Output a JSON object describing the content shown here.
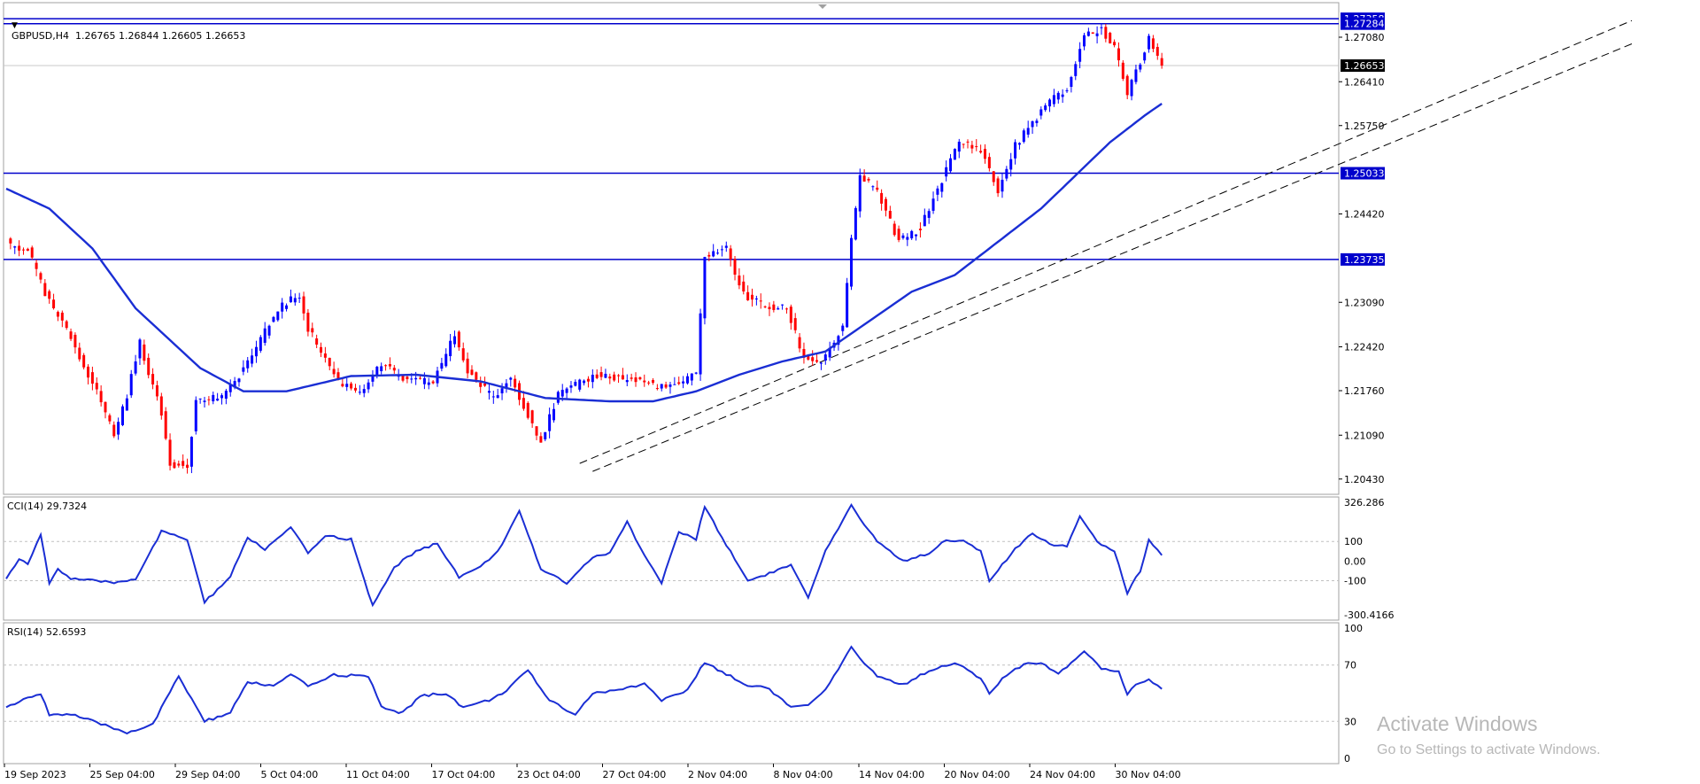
{
  "symbol_header": {
    "menu_icon": "triangle-down-icon",
    "text": "GBPUSD,H4  1.26765 1.26844 1.26605 1.26653"
  },
  "cci_header": {
    "text": "CCI(14) 29.7324"
  },
  "rsi_header": {
    "text": "RSI(14) 52.6593"
  },
  "watermark": {
    "line1": "Activate Windows",
    "line2": "Go to Settings to activate Windows."
  },
  "colors": {
    "bull_candle": "#0000ff",
    "bear_candle": "#ff0000",
    "moving_average": "#1a2ed4",
    "level_line": "#0000cc",
    "indicator_line": "#1a2ed4",
    "trend_line": "#000000",
    "label_bg": "#0000cc",
    "current_price_bg": "#000000"
  },
  "chart_data": [
    {
      "type": "candlestick",
      "panel": "main",
      "symbol": "GBPUSD",
      "timeframe": "H4",
      "ohlc_last": {
        "open": 1.26765,
        "high": 1.26844,
        "low": 1.26605,
        "close": 1.26653
      },
      "y_ticks": [
        1.2708,
        1.2641,
        1.2575,
        1.2442,
        1.2309,
        1.2242,
        1.2176,
        1.2109,
        1.2043
      ],
      "ylim": [
        1.202,
        1.276
      ],
      "x_tick_labels": [
        "19 Sep 2023",
        "25 Sep 04:00",
        "29 Sep 04:00",
        "5 Oct 04:00",
        "11 Oct 04:00",
        "17 Oct 04:00",
        "23 Oct 04:00",
        "27 Oct 04:00",
        "2 Nov 04:00",
        "8 Nov 04:00",
        "14 Nov 04:00",
        "20 Nov 04:00",
        "24 Nov 04:00",
        "30 Nov 04:00"
      ],
      "price_path_keypoints": [
        {
          "t": 0,
          "price": 1.24
        },
        {
          "t": 3,
          "price": 1.239
        },
        {
          "t": 5,
          "price": 1.239
        },
        {
          "t": 9,
          "price": 1.232
        },
        {
          "t": 15,
          "price": 1.2255
        },
        {
          "t": 22,
          "price": 1.216
        },
        {
          "t": 25,
          "price": 1.211
        },
        {
          "t": 28,
          "price": 1.217
        },
        {
          "t": 31,
          "price": 1.2248
        },
        {
          "t": 36,
          "price": 1.214
        },
        {
          "t": 38,
          "price": 1.2065
        },
        {
          "t": 42,
          "price": 1.2065
        },
        {
          "t": 44,
          "price": 1.216
        },
        {
          "t": 51,
          "price": 1.217
        },
        {
          "t": 58,
          "price": 1.224
        },
        {
          "t": 63,
          "price": 1.23
        },
        {
          "t": 68,
          "price": 1.232
        },
        {
          "t": 70,
          "price": 1.227
        },
        {
          "t": 77,
          "price": 1.219
        },
        {
          "t": 82,
          "price": 1.2175
        },
        {
          "t": 87,
          "price": 1.2215
        },
        {
          "t": 93,
          "price": 1.219
        },
        {
          "t": 99,
          "price": 1.219
        },
        {
          "t": 104,
          "price": 1.226
        },
        {
          "t": 107,
          "price": 1.2205
        },
        {
          "t": 113,
          "price": 1.2165
        },
        {
          "t": 117,
          "price": 1.2195
        },
        {
          "t": 124,
          "price": 1.21
        },
        {
          "t": 128,
          "price": 1.217
        },
        {
          "t": 137,
          "price": 1.22
        },
        {
          "t": 142,
          "price": 1.2195
        },
        {
          "t": 147,
          "price": 1.219
        },
        {
          "t": 154,
          "price": 1.218
        },
        {
          "t": 160,
          "price": 1.22
        },
        {
          "t": 162,
          "price": 1.238
        },
        {
          "t": 167,
          "price": 1.239
        },
        {
          "t": 171,
          "price": 1.232
        },
        {
          "t": 177,
          "price": 1.23
        },
        {
          "t": 181,
          "price": 1.23
        },
        {
          "t": 185,
          "price": 1.2225
        },
        {
          "t": 189,
          "price": 1.222
        },
        {
          "t": 194,
          "price": 1.227
        },
        {
          "t": 196,
          "price": 1.24
        },
        {
          "t": 198,
          "price": 1.25
        },
        {
          "t": 202,
          "price": 1.2475
        },
        {
          "t": 207,
          "price": 1.24
        },
        {
          "t": 212,
          "price": 1.242
        },
        {
          "t": 216,
          "price": 1.248
        },
        {
          "t": 221,
          "price": 1.255
        },
        {
          "t": 226,
          "price": 1.254
        },
        {
          "t": 230,
          "price": 1.2475
        },
        {
          "t": 234,
          "price": 1.2545
        },
        {
          "t": 238,
          "price": 1.258
        },
        {
          "t": 242,
          "price": 1.2612
        },
        {
          "t": 246,
          "price": 1.2628
        },
        {
          "t": 250,
          "price": 1.2712
        },
        {
          "t": 254,
          "price": 1.2718
        },
        {
          "t": 257,
          "price": 1.2695
        },
        {
          "t": 260,
          "price": 1.2625
        },
        {
          "t": 263,
          "price": 1.2668
        },
        {
          "t": 265,
          "price": 1.2712
        },
        {
          "t": 268,
          "price": 1.2665
        }
      ],
      "moving_average_keypoints": [
        {
          "t": 0,
          "price": 1.248
        },
        {
          "t": 10,
          "price": 1.245
        },
        {
          "t": 20,
          "price": 1.239
        },
        {
          "t": 30,
          "price": 1.23
        },
        {
          "t": 45,
          "price": 1.221
        },
        {
          "t": 55,
          "price": 1.2175
        },
        {
          "t": 65,
          "price": 1.2175
        },
        {
          "t": 80,
          "price": 1.2198
        },
        {
          "t": 95,
          "price": 1.22
        },
        {
          "t": 110,
          "price": 1.219
        },
        {
          "t": 125,
          "price": 1.2165
        },
        {
          "t": 140,
          "price": 1.216
        },
        {
          "t": 150,
          "price": 1.216
        },
        {
          "t": 160,
          "price": 1.2175
        },
        {
          "t": 170,
          "price": 1.22
        },
        {
          "t": 180,
          "price": 1.222
        },
        {
          "t": 190,
          "price": 1.2235
        },
        {
          "t": 200,
          "price": 1.228
        },
        {
          "t": 210,
          "price": 1.2325
        },
        {
          "t": 220,
          "price": 1.235
        },
        {
          "t": 230,
          "price": 1.24
        },
        {
          "t": 240,
          "price": 1.245
        },
        {
          "t": 248,
          "price": 1.25
        },
        {
          "t": 256,
          "price": 1.255
        },
        {
          "t": 264,
          "price": 1.259
        },
        {
          "t": 268,
          "price": 1.2608
        }
      ],
      "horizontal_levels": [
        {
          "price": 1.27358,
          "label": "1.27358",
          "style": "solid"
        },
        {
          "price": 1.27284,
          "label": "1.27284",
          "style": "solid"
        },
        {
          "price": 1.25033,
          "label": "1.25033",
          "style": "solid"
        },
        {
          "price": 1.23735,
          "label": "1.23735",
          "style": "solid"
        },
        {
          "price": 1.26653,
          "label": "1.26653",
          "style": "thin-current"
        }
      ],
      "trend_lines": [
        {
          "from": {
            "t": 133,
            "price": 1.20665
          },
          "to": {
            "t": 377,
            "price": 1.2733
          },
          "style": "dashed"
        },
        {
          "from": {
            "t": 136,
            "price": 1.20545
          },
          "to": {
            "t": 377,
            "price": 1.2698
          },
          "style": "dashed"
        }
      ]
    },
    {
      "type": "line",
      "panel": "cci",
      "name": "CCI(14)",
      "last_value": 29.7324,
      "ylim": [
        -300.4166,
        326.286
      ],
      "y_ticks": [
        326.286,
        100,
        0.0,
        -100,
        -300.4166
      ],
      "y_tick_labels": [
        "326.286",
        "100",
        "0.00",
        "-100",
        "-300.4166"
      ],
      "levels": [
        100,
        -100
      ],
      "keypoints": [
        {
          "t": 0,
          "v": -90
        },
        {
          "t": 3,
          "v": 10
        },
        {
          "t": 5,
          "v": -20
        },
        {
          "t": 8,
          "v": 140
        },
        {
          "t": 10,
          "v": -110
        },
        {
          "t": 12,
          "v": -40
        },
        {
          "t": 15,
          "v": -90
        },
        {
          "t": 20,
          "v": -100
        },
        {
          "t": 25,
          "v": -110
        },
        {
          "t": 30,
          "v": -90
        },
        {
          "t": 36,
          "v": 150
        },
        {
          "t": 42,
          "v": 110
        },
        {
          "t": 46,
          "v": -210
        },
        {
          "t": 52,
          "v": -80
        },
        {
          "t": 56,
          "v": 120
        },
        {
          "t": 60,
          "v": 60
        },
        {
          "t": 66,
          "v": 170
        },
        {
          "t": 70,
          "v": 40
        },
        {
          "t": 74,
          "v": 130
        },
        {
          "t": 80,
          "v": 110
        },
        {
          "t": 85,
          "v": -230
        },
        {
          "t": 90,
          "v": -30
        },
        {
          "t": 95,
          "v": 50
        },
        {
          "t": 100,
          "v": 90
        },
        {
          "t": 105,
          "v": -80
        },
        {
          "t": 110,
          "v": -30
        },
        {
          "t": 114,
          "v": 50
        },
        {
          "t": 119,
          "v": 250
        },
        {
          "t": 124,
          "v": -40
        },
        {
          "t": 130,
          "v": -110
        },
        {
          "t": 136,
          "v": 20
        },
        {
          "t": 140,
          "v": 40
        },
        {
          "t": 144,
          "v": 200
        },
        {
          "t": 148,
          "v": 30
        },
        {
          "t": 152,
          "v": -110
        },
        {
          "t": 156,
          "v": 150
        },
        {
          "t": 160,
          "v": 110
        },
        {
          "t": 162,
          "v": 280
        },
        {
          "t": 166,
          "v": 120
        },
        {
          "t": 172,
          "v": -100
        },
        {
          "t": 176,
          "v": -70
        },
        {
          "t": 182,
          "v": -20
        },
        {
          "t": 186,
          "v": -190
        },
        {
          "t": 190,
          "v": 50
        },
        {
          "t": 196,
          "v": 280
        },
        {
          "t": 202,
          "v": 100
        },
        {
          "t": 208,
          "v": 0
        },
        {
          "t": 214,
          "v": 40
        },
        {
          "t": 218,
          "v": 110
        },
        {
          "t": 222,
          "v": 100
        },
        {
          "t": 226,
          "v": 50
        },
        {
          "t": 228,
          "v": -100
        },
        {
          "t": 234,
          "v": 60
        },
        {
          "t": 238,
          "v": 140
        },
        {
          "t": 243,
          "v": 80
        },
        {
          "t": 246,
          "v": 80
        },
        {
          "t": 249,
          "v": 230
        },
        {
          "t": 253,
          "v": 100
        },
        {
          "t": 257,
          "v": 50
        },
        {
          "t": 260,
          "v": -160
        },
        {
          "t": 263,
          "v": -50
        },
        {
          "t": 265,
          "v": 110
        },
        {
          "t": 268,
          "v": 30
        }
      ]
    },
    {
      "type": "line",
      "panel": "rsi",
      "name": "RSI(14)",
      "last_value": 52.6593,
      "ylim": [
        0,
        100
      ],
      "y_ticks": [
        100,
        70,
        30,
        0
      ],
      "y_tick_labels": [
        "100",
        "70",
        "30",
        "0"
      ],
      "levels": [
        70,
        30
      ],
      "keypoints": [
        {
          "t": 0,
          "v": 40
        },
        {
          "t": 4,
          "v": 45
        },
        {
          "t": 8,
          "v": 50
        },
        {
          "t": 10,
          "v": 35
        },
        {
          "t": 15,
          "v": 35
        },
        {
          "t": 20,
          "v": 30
        },
        {
          "t": 28,
          "v": 22
        },
        {
          "t": 34,
          "v": 28
        },
        {
          "t": 40,
          "v": 62
        },
        {
          "t": 46,
          "v": 30
        },
        {
          "t": 52,
          "v": 36
        },
        {
          "t": 56,
          "v": 58
        },
        {
          "t": 62,
          "v": 55
        },
        {
          "t": 66,
          "v": 63
        },
        {
          "t": 70,
          "v": 55
        },
        {
          "t": 76,
          "v": 63
        },
        {
          "t": 84,
          "v": 62
        },
        {
          "t": 87,
          "v": 40
        },
        {
          "t": 92,
          "v": 36
        },
        {
          "t": 96,
          "v": 48
        },
        {
          "t": 102,
          "v": 50
        },
        {
          "t": 106,
          "v": 40
        },
        {
          "t": 112,
          "v": 45
        },
        {
          "t": 116,
          "v": 52
        },
        {
          "t": 121,
          "v": 66
        },
        {
          "t": 126,
          "v": 45
        },
        {
          "t": 132,
          "v": 35
        },
        {
          "t": 136,
          "v": 50
        },
        {
          "t": 142,
          "v": 52
        },
        {
          "t": 148,
          "v": 57
        },
        {
          "t": 152,
          "v": 45
        },
        {
          "t": 158,
          "v": 52
        },
        {
          "t": 162,
          "v": 72
        },
        {
          "t": 168,
          "v": 62
        },
        {
          "t": 172,
          "v": 55
        },
        {
          "t": 176,
          "v": 55
        },
        {
          "t": 182,
          "v": 40
        },
        {
          "t": 186,
          "v": 41
        },
        {
          "t": 190,
          "v": 52
        },
        {
          "t": 196,
          "v": 82
        },
        {
          "t": 202,
          "v": 62
        },
        {
          "t": 208,
          "v": 56
        },
        {
          "t": 214,
          "v": 66
        },
        {
          "t": 220,
          "v": 72
        },
        {
          "t": 226,
          "v": 60
        },
        {
          "t": 228,
          "v": 50
        },
        {
          "t": 232,
          "v": 63
        },
        {
          "t": 236,
          "v": 70
        },
        {
          "t": 240,
          "v": 72
        },
        {
          "t": 244,
          "v": 64
        },
        {
          "t": 250,
          "v": 80
        },
        {
          "t": 254,
          "v": 68
        },
        {
          "t": 258,
          "v": 65
        },
        {
          "t": 260,
          "v": 50
        },
        {
          "t": 263,
          "v": 58
        },
        {
          "t": 265,
          "v": 60
        },
        {
          "t": 268,
          "v": 53
        }
      ]
    }
  ]
}
